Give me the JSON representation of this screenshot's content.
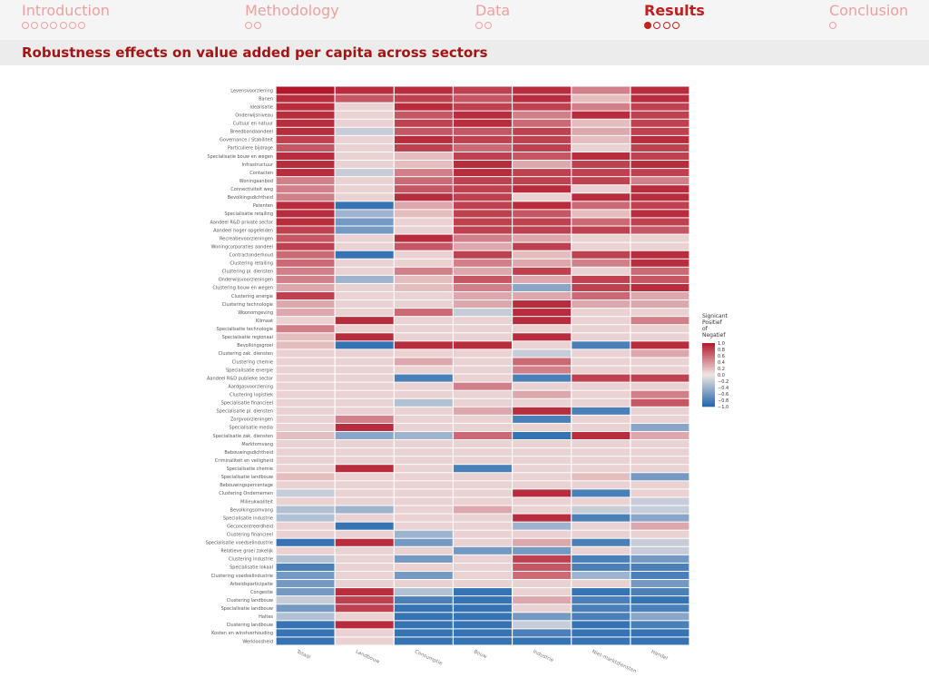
{
  "nav": {
    "sections": [
      {
        "label": "Introduction",
        "dots": 7,
        "filled": 0,
        "active": false
      },
      {
        "label": "Methodology",
        "dots": 2,
        "filled": 0,
        "active": false
      },
      {
        "label": "Data",
        "dots": 2,
        "filled": 0,
        "active": false
      },
      {
        "label": "Results",
        "dots": 4,
        "filled": 1,
        "active": true
      },
      {
        "label": "Conclusion",
        "dots": 1,
        "filled": 0,
        "active": false
      }
    ]
  },
  "frame": {
    "title": "Robustness effects on value added per capita across sectors"
  },
  "colors": {
    "accent": "#c02020",
    "nav_inactive": "#eda0a0",
    "title": "#a31414",
    "positive": "#b2182b",
    "negative": "#2166ac",
    "neutral": "#f0e6e4"
  },
  "chart_data": {
    "type": "heatmap",
    "title": "",
    "xlabel": "",
    "ylabel": "",
    "columns": [
      "Totaal",
      "Landbouw",
      "Consumptie",
      "Bouw",
      "Industrie",
      "Niet-marktdiensten",
      "Handel"
    ],
    "rows": [
      "Levensvoorziening",
      "Banen",
      "Idealisatie",
      "Onderwijsniveau",
      "Cultuur en natuur",
      "Breedbandaandeel",
      "Governance / Stabiliteit",
      "Particuliere bijdrage",
      "Specialisatie bouw en wegen",
      "Infrastructuur",
      "Contacten",
      "Woningaanbod",
      "Connectiviteit weg",
      "Bevolkingsdichtheid",
      "Patenten",
      "Specialisatie retailing",
      "Aandeel R&D private sector",
      "Aandeel hoger opgeleiden",
      "Recreatievoorzieningen",
      "Woningcorporaties aandeel",
      "Contractonderhoud",
      "Clustering retailing",
      "Clustering pl. diensten",
      "Onderwijsvoorzieningen",
      "Clustering bouw en wegen",
      "Clustering energie",
      "Clustering technologie",
      "Woonomgeving",
      "Klimaat",
      "Specialisatie technologie",
      "Specialisatie regionaal",
      "Bevolkingsgroei",
      "Clustering zak. diensten",
      "Clustering chemie",
      "Specialisatie energie",
      "Aandeel R&D publieke sector",
      "Aardgasvoorziening",
      "Clustering logistiek",
      "Specialisatie financieel",
      "Specialisatie pl. diensten",
      "Zorgvoorzieningen",
      "Specialisatie media",
      "Specialisatie zak. diensten",
      "Marktomvang",
      "Bebouwingsdichtheid",
      "Criminaliteit en veiligheid",
      "Specialisatie chemie",
      "Specialisatie landbouw",
      "Bebouwingspercentage",
      "Clustering Ondernemen",
      "Milieukwaliteit",
      "Bevolkingsomvang",
      "Specialisatie industrie",
      "Geconcentreerdheid",
      "Clustering financieel",
      "Specialisatie voedselindustrie",
      "Relatieve groei zakelijk",
      "Clustering industrie",
      "Specialisatie lokaal",
      "Clustering voedselindustrie",
      "Arbeidsparticipatie",
      "Congestie",
      "Clustering landbouw",
      "Specialisatie landbouw",
      "Haltes",
      "Clustering landbouw",
      "Kosten en winstverhouding",
      "Werkloosheid"
    ],
    "values": [
      [
        1.0,
        0.9,
        0.9,
        0.8,
        0.9,
        0.5,
        0.9
      ],
      [
        0.9,
        0.7,
        0.8,
        0.7,
        0.9,
        0.2,
        0.9
      ],
      [
        0.9,
        0.1,
        0.9,
        0.8,
        0.8,
        0.5,
        0.8
      ],
      [
        0.9,
        0.1,
        0.7,
        0.9,
        0.5,
        0.9,
        0.8
      ],
      [
        0.9,
        0.1,
        0.8,
        0.9,
        0.6,
        0.2,
        0.8
      ],
      [
        0.9,
        -0.2,
        0.7,
        0.7,
        0.8,
        0.3,
        0.8
      ],
      [
        0.8,
        0.1,
        0.9,
        0.8,
        0.8,
        0.2,
        0.9
      ],
      [
        0.7,
        0.1,
        0.8,
        0.6,
        0.8,
        0.1,
        0.8
      ],
      [
        0.9,
        0.1,
        0.2,
        0.8,
        0.7,
        0.9,
        0.8
      ],
      [
        0.9,
        0.1,
        0.2,
        0.9,
        0.3,
        0.8,
        0.9
      ],
      [
        0.9,
        -0.2,
        0.5,
        0.9,
        0.8,
        0.8,
        0.8
      ],
      [
        0.5,
        0.1,
        0.6,
        0.8,
        0.8,
        0.8,
        0.5
      ],
      [
        0.5,
        0.1,
        0.7,
        0.8,
        0.9,
        0.1,
        0.9
      ],
      [
        0.5,
        0.1,
        0.9,
        0.8,
        0.1,
        0.9,
        0.9
      ],
      [
        0.9,
        -0.9,
        0.3,
        0.8,
        0.9,
        0.6,
        0.8
      ],
      [
        0.9,
        -0.4,
        0.2,
        0.8,
        0.7,
        0.2,
        0.9
      ],
      [
        0.9,
        -0.6,
        0.1,
        0.8,
        0.8,
        0.6,
        0.8
      ],
      [
        0.8,
        -0.6,
        0.1,
        0.8,
        0.8,
        0.8,
        0.7
      ],
      [
        0.7,
        0.1,
        0.9,
        0.5,
        0.3,
        0.1,
        0.1
      ],
      [
        0.8,
        0.1,
        0.7,
        0.3,
        0.8,
        0.1,
        0.1
      ],
      [
        0.6,
        -0.9,
        0.1,
        0.8,
        0.2,
        0.8,
        0.9
      ],
      [
        0.6,
        0.1,
        0.1,
        0.5,
        0.3,
        0.5,
        0.9
      ],
      [
        0.5,
        0.1,
        0.5,
        0.3,
        0.8,
        0.1,
        0.6
      ],
      [
        0.5,
        -0.4,
        0.2,
        0.7,
        0.3,
        0.8,
        0.7
      ],
      [
        0.3,
        0.1,
        0.2,
        0.5,
        -0.5,
        0.8,
        0.9
      ],
      [
        0.8,
        0.1,
        0.1,
        0.3,
        0.3,
        0.6,
        0.3
      ],
      [
        0.3,
        0.1,
        0.1,
        0.3,
        0.9,
        0.3,
        0.3
      ],
      [
        0.3,
        0.1,
        0.6,
        -0.2,
        0.9,
        0.1,
        0.1
      ],
      [
        0.1,
        0.9,
        0.1,
        0.1,
        0.9,
        0.1,
        0.5
      ],
      [
        0.5,
        0.1,
        0.1,
        0.1,
        0.1,
        0.1,
        0.1
      ],
      [
        0.2,
        0.9,
        0.1,
        0.1,
        0.9,
        0.1,
        0.1
      ],
      [
        0.2,
        -0.9,
        0.9,
        0.9,
        0.1,
        -0.8,
        0.9
      ],
      [
        0.1,
        0.1,
        0.1,
        0.1,
        -0.2,
        0.1,
        0.3
      ],
      [
        0.1,
        0.1,
        0.3,
        0.1,
        0.6,
        0.1,
        0.1
      ],
      [
        0.1,
        0.1,
        0.1,
        0.1,
        0.5,
        0.1,
        0.1
      ],
      [
        0.1,
        0.1,
        -0.8,
        0.1,
        -0.8,
        0.8,
        0.8
      ],
      [
        0.1,
        0.1,
        0.1,
        0.5,
        0.1,
        0.1,
        0.1
      ],
      [
        0.1,
        0.1,
        0.1,
        0.1,
        0.3,
        0.1,
        0.5
      ],
      [
        0.1,
        0.1,
        -0.3,
        0.1,
        0.1,
        0.1,
        0.7
      ],
      [
        0.1,
        0.1,
        0.1,
        0.3,
        0.9,
        -0.8,
        0.1
      ],
      [
        0.1,
        0.5,
        0.1,
        0.1,
        -0.8,
        0.1,
        0.1
      ],
      [
        0.1,
        0.9,
        0.1,
        0.1,
        0.1,
        0.1,
        -0.5
      ],
      [
        0.2,
        -0.5,
        -0.4,
        0.6,
        -0.9,
        0.9,
        0.3
      ],
      [
        0.1,
        0.1,
        0.1,
        0.1,
        0.1,
        0.1,
        0.1
      ],
      [
        0.1,
        0.1,
        0.1,
        0.1,
        0.1,
        0.1,
        0.1
      ],
      [
        0.1,
        0.1,
        0.1,
        0.1,
        0.1,
        0.1,
        0.1
      ],
      [
        0.1,
        0.9,
        0.1,
        -0.8,
        0.1,
        0.1,
        0.1
      ],
      [
        0.2,
        0.1,
        0.1,
        0.1,
        0.1,
        0.2,
        -0.6
      ],
      [
        0.1,
        0.1,
        0.1,
        0.1,
        0.1,
        0.1,
        0.1
      ],
      [
        -0.2,
        0.1,
        0.1,
        0.1,
        0.9,
        -0.8,
        0.1
      ],
      [
        0.1,
        0.1,
        0.1,
        0.1,
        0.1,
        0.1,
        -0.2
      ],
      [
        -0.3,
        -0.4,
        0.1,
        0.3,
        0.1,
        -0.2,
        -0.2
      ],
      [
        -0.3,
        0.1,
        0.1,
        0.1,
        0.9,
        -0.8,
        -0.5
      ],
      [
        0.1,
        -0.9,
        0.1,
        0.1,
        -0.4,
        0.1,
        0.3
      ],
      [
        0.1,
        0.1,
        -0.4,
        0.1,
        0.1,
        0.1,
        0.1
      ],
      [
        -0.9,
        0.9,
        -0.6,
        0.1,
        0.3,
        -0.8,
        -0.2
      ],
      [
        0.1,
        0.1,
        0.1,
        -0.6,
        -0.6,
        0.1,
        -0.2
      ],
      [
        -0.3,
        0.1,
        -0.6,
        0.1,
        0.8,
        -0.8,
        -0.6
      ],
      [
        -0.8,
        0.1,
        0.1,
        0.1,
        0.7,
        -0.8,
        -0.8
      ],
      [
        -0.6,
        0.1,
        -0.6,
        0.1,
        0.6,
        -0.4,
        -0.8
      ],
      [
        -0.6,
        0.1,
        0.1,
        0.1,
        0.1,
        0.1,
        -0.6
      ],
      [
        -0.6,
        0.9,
        -0.3,
        -0.9,
        0.1,
        -0.9,
        -0.8
      ],
      [
        -0.2,
        0.8,
        -0.8,
        -0.9,
        0.3,
        -0.8,
        -0.9
      ],
      [
        -0.6,
        0.8,
        -0.9,
        -0.9,
        0.1,
        -0.8,
        -0.8
      ],
      [
        -0.3,
        0.1,
        -0.9,
        -0.9,
        -0.6,
        -0.8,
        -0.5
      ],
      [
        -0.9,
        0.9,
        -0.9,
        -0.9,
        -0.2,
        -0.9,
        -0.8
      ],
      [
        -0.9,
        0.1,
        -0.9,
        -0.9,
        -0.8,
        -0.9,
        -0.9
      ],
      [
        -0.9,
        0.1,
        -0.9,
        -0.9,
        -0.9,
        -0.9,
        -0.9
      ]
    ],
    "color_scale": {
      "min": -1.0,
      "max": 1.0,
      "low": "#2166ac",
      "mid": "#f0e6e4",
      "high": "#b2182b"
    },
    "legend": {
      "title_lines": [
        "Signicant",
        "Positief",
        "of",
        "Negatief"
      ],
      "ticks": [
        "1.0",
        "0.8",
        "0.6",
        "0.4",
        "0.2",
        "0.0",
        "−0.2",
        "−0.4",
        "−0.6",
        "−0.8",
        "−1.0"
      ],
      "placement": "right"
    }
  }
}
